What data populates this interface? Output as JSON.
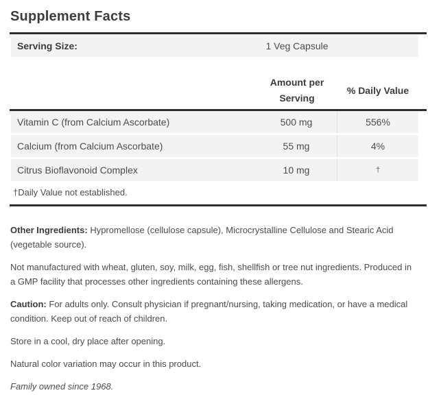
{
  "panel": {
    "title": "Supplement Facts",
    "serving": {
      "label": "Serving Size:",
      "value": "1 Veg Capsule"
    },
    "columns": {
      "amount": "Amount per Serving",
      "daily_value": "% Daily Value"
    },
    "rows": [
      {
        "name": "Vitamin C (from Calcium Ascorbate)",
        "amount": "500 mg",
        "daily_value": "556%"
      },
      {
        "name": "Calcium (from Calcium Ascorbate)",
        "amount": "55 mg",
        "daily_value": "4%"
      },
      {
        "name": "Citrus Bioflavonoid Complex",
        "amount": "10 mg",
        "daily_value": "†"
      }
    ],
    "footnote": "†Daily Value not established."
  },
  "notes": {
    "other_ingredients": {
      "label": "Other Ingredients:",
      "text": "Hypromellose (cellulose capsule), Microcrystalline Cellulose and Stearic Acid (vegetable source)."
    },
    "allergen_statement": "Not manufactured with wheat, gluten, soy, milk, egg, fish, shellfish or tree nut ingredients. Produced in a GMP facility that processes other ingredients containing these allergens.",
    "caution": {
      "label": "Caution:",
      "text": "For adults only. Consult physician if pregnant/nursing, taking medication, or have a medical condition. Keep out of reach of children."
    },
    "storage": "Store in a cool, dry place after opening.",
    "color_note": "Natural color variation may occur in this product.",
    "tagline": "Family owned since 1968."
  },
  "colors": {
    "rule": "#2d2d2d",
    "row_background": "#f3f3f3",
    "column_divider": "#dfdfdf",
    "heading_text": "#3c3c3c",
    "body_text": "#4c4c4c"
  }
}
